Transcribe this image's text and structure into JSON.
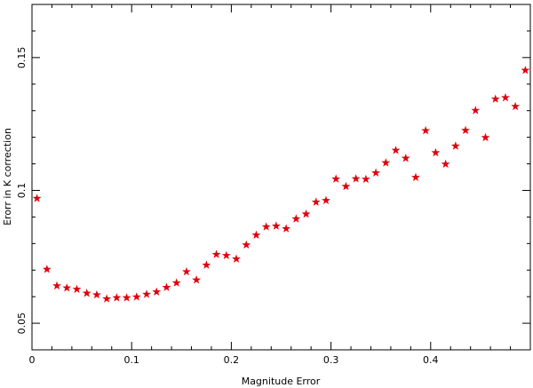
{
  "chart_data": {
    "type": "scatter",
    "title": "",
    "xlabel": "Magnitude Error",
    "ylabel": "Erorr in K correction",
    "xlim": [
      0.0,
      0.5
    ],
    "ylim": [
      0.04,
      0.17
    ],
    "xticks": [
      0.1,
      0.2,
      0.3,
      0.4
    ],
    "xtick_labels": [
      "0.1",
      "0.2",
      "0.3",
      "0.4"
    ],
    "yticks": [
      0.05,
      0.1,
      0.15
    ],
    "ytick_labels": [
      "0.05",
      "0.1",
      "0.15"
    ],
    "grid": false,
    "marker": "star",
    "marker_color": "#e0000e",
    "series": [
      {
        "x": [
          0.005,
          0.015,
          0.025,
          0.035,
          0.045,
          0.055,
          0.065,
          0.075,
          0.085,
          0.095,
          0.105,
          0.115,
          0.125,
          0.135,
          0.145,
          0.155,
          0.165,
          0.175,
          0.185,
          0.195,
          0.205,
          0.215,
          0.225,
          0.235,
          0.245,
          0.255,
          0.265,
          0.275,
          0.285,
          0.295,
          0.305,
          0.315,
          0.325,
          0.335,
          0.345,
          0.355,
          0.365,
          0.375,
          0.385,
          0.395,
          0.405,
          0.415,
          0.425,
          0.435,
          0.445,
          0.455,
          0.465,
          0.475,
          0.485,
          0.495
        ],
        "y": [
          0.097,
          0.0703,
          0.0641,
          0.0633,
          0.0628,
          0.0613,
          0.0607,
          0.0592,
          0.0596,
          0.0596,
          0.0599,
          0.0609,
          0.0618,
          0.0635,
          0.0652,
          0.0694,
          0.0663,
          0.0719,
          0.0759,
          0.0755,
          0.0742,
          0.0795,
          0.0832,
          0.0863,
          0.0866,
          0.0856,
          0.0893,
          0.0911,
          0.0956,
          0.0962,
          0.1043,
          0.1015,
          0.1044,
          0.1042,
          0.1066,
          0.1104,
          0.1151,
          0.1121,
          0.1049,
          0.1225,
          0.1142,
          0.1099,
          0.1167,
          0.1226,
          0.1301,
          0.1199,
          0.1344,
          0.1349,
          0.1316,
          0.1452
        ]
      }
    ]
  }
}
